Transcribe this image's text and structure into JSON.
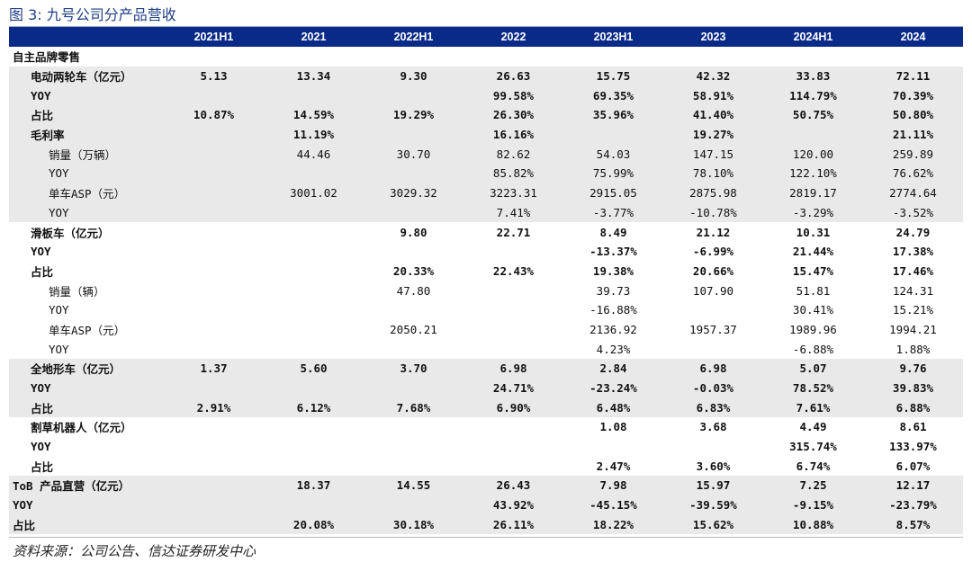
{
  "figure": {
    "title": "图 3:  九号公司分产品营收",
    "source": "资料来源：公司公告、信达证券研发中心"
  },
  "table": {
    "header": [
      "",
      "2021H1",
      "2021",
      "2022H1",
      "2022",
      "2023H1",
      "2023",
      "2024H1",
      "2024"
    ],
    "rows": [
      {
        "label": "自主品牌零售",
        "values": [
          "",
          "",
          "",
          "",
          "",
          "",
          "",
          ""
        ],
        "level": 0,
        "bold": true,
        "shade": false
      },
      {
        "label": "电动两轮车（亿元）",
        "values": [
          "5.13",
          "13.34",
          "9.30",
          "26.63",
          "15.75",
          "42.32",
          "33.83",
          "72.11"
        ],
        "level": 1,
        "bold": true,
        "shade": true
      },
      {
        "label": "YOY",
        "values": [
          "",
          "",
          "",
          "99.58%",
          "69.35%",
          "58.91%",
          "114.79%",
          "70.39%"
        ],
        "level": 1,
        "bold": true,
        "shade": true
      },
      {
        "label": "占比",
        "values": [
          "10.87%",
          "14.59%",
          "19.29%",
          "26.30%",
          "35.96%",
          "41.40%",
          "50.75%",
          "50.80%"
        ],
        "level": 1,
        "bold": true,
        "shade": true
      },
      {
        "label": "毛利率",
        "values": [
          "",
          "11.19%",
          "",
          "16.16%",
          "",
          "19.27%",
          "",
          "21.11%"
        ],
        "level": 1,
        "bold": true,
        "shade": true
      },
      {
        "label": "销量（万辆）",
        "values": [
          "",
          "44.46",
          "30.70",
          "82.62",
          "54.03",
          "147.15",
          "120.00",
          "259.89"
        ],
        "level": 2,
        "bold": false,
        "shade": true
      },
      {
        "label": "YOY",
        "values": [
          "",
          "",
          "",
          "85.82%",
          "75.99%",
          "78.10%",
          "122.10%",
          "76.62%"
        ],
        "level": 2,
        "bold": false,
        "shade": true
      },
      {
        "label": "单车ASP（元）",
        "values": [
          "",
          "3001.02",
          "3029.32",
          "3223.31",
          "2915.05",
          "2875.98",
          "2819.17",
          "2774.64"
        ],
        "level": 2,
        "bold": false,
        "shade": true
      },
      {
        "label": "YOY",
        "values": [
          "",
          "",
          "",
          "7.41%",
          "-3.77%",
          "-10.78%",
          "-3.29%",
          "-3.52%"
        ],
        "level": 2,
        "bold": false,
        "shade": true
      },
      {
        "label": "滑板车（亿元）",
        "values": [
          "",
          "",
          "9.80",
          "22.71",
          "8.49",
          "21.12",
          "10.31",
          "24.79"
        ],
        "level": 1,
        "bold": true,
        "shade": false
      },
      {
        "label": "YOY",
        "values": [
          "",
          "",
          "",
          "",
          "-13.37%",
          "-6.99%",
          "21.44%",
          "17.38%"
        ],
        "level": 1,
        "bold": true,
        "shade": false
      },
      {
        "label": "占比",
        "values": [
          "",
          "",
          "20.33%",
          "22.43%",
          "19.38%",
          "20.66%",
          "15.47%",
          "17.46%"
        ],
        "level": 1,
        "bold": true,
        "shade": false
      },
      {
        "label": "销量（辆）",
        "values": [
          "",
          "",
          "47.80",
          "",
          "39.73",
          "107.90",
          "51.81",
          "124.31"
        ],
        "level": 2,
        "bold": false,
        "shade": false
      },
      {
        "label": "YOY",
        "values": [
          "",
          "",
          "",
          "",
          "-16.88%",
          "",
          "30.41%",
          "15.21%"
        ],
        "level": 2,
        "bold": false,
        "shade": false
      },
      {
        "label": "单车ASP（元）",
        "values": [
          "",
          "",
          "2050.21",
          "",
          "2136.92",
          "1957.37",
          "1989.96",
          "1994.21"
        ],
        "level": 2,
        "bold": false,
        "shade": false
      },
      {
        "label": "YOY",
        "values": [
          "",
          "",
          "",
          "",
          "4.23%",
          "",
          "-6.88%",
          "1.88%"
        ],
        "level": 2,
        "bold": false,
        "shade": false
      },
      {
        "label": "全地形车（亿元）",
        "values": [
          "1.37",
          "5.60",
          "3.70",
          "6.98",
          "2.84",
          "6.98",
          "5.07",
          "9.76"
        ],
        "level": 1,
        "bold": true,
        "shade": true
      },
      {
        "label": "YOY",
        "values": [
          "",
          "",
          "",
          "24.71%",
          "-23.24%",
          "-0.03%",
          "78.52%",
          "39.83%"
        ],
        "level": 1,
        "bold": true,
        "shade": true
      },
      {
        "label": "占比",
        "values": [
          "2.91%",
          "6.12%",
          "7.68%",
          "6.90%",
          "6.48%",
          "6.83%",
          "7.61%",
          "6.88%"
        ],
        "level": 1,
        "bold": true,
        "shade": true
      },
      {
        "label": "割草机器人（亿元）",
        "values": [
          "",
          "",
          "",
          "",
          "1.08",
          "3.68",
          "4.49",
          "8.61"
        ],
        "level": 1,
        "bold": true,
        "shade": false
      },
      {
        "label": "YOY",
        "values": [
          "",
          "",
          "",
          "",
          "",
          "",
          "315.74%",
          "133.97%"
        ],
        "level": 1,
        "bold": true,
        "shade": false
      },
      {
        "label": "占比",
        "values": [
          "",
          "",
          "",
          "",
          "2.47%",
          "3.60%",
          "6.74%",
          "6.07%"
        ],
        "level": 1,
        "bold": true,
        "shade": false
      },
      {
        "label": "ToB 产品直营（亿元）",
        "values": [
          "",
          "18.37",
          "14.55",
          "26.43",
          "7.98",
          "15.97",
          "7.25",
          "12.17"
        ],
        "level": 0,
        "bold": true,
        "shade": true
      },
      {
        "label": "YOY",
        "values": [
          "",
          "",
          "",
          "43.92%",
          "-45.15%",
          "-39.59%",
          "-9.15%",
          "-23.79%"
        ],
        "level": 0,
        "bold": true,
        "shade": true
      },
      {
        "label": "占比",
        "values": [
          "",
          "20.08%",
          "30.18%",
          "26.11%",
          "18.22%",
          "15.62%",
          "10.88%",
          "8.57%"
        ],
        "level": 0,
        "bold": true,
        "shade": true
      }
    ]
  }
}
